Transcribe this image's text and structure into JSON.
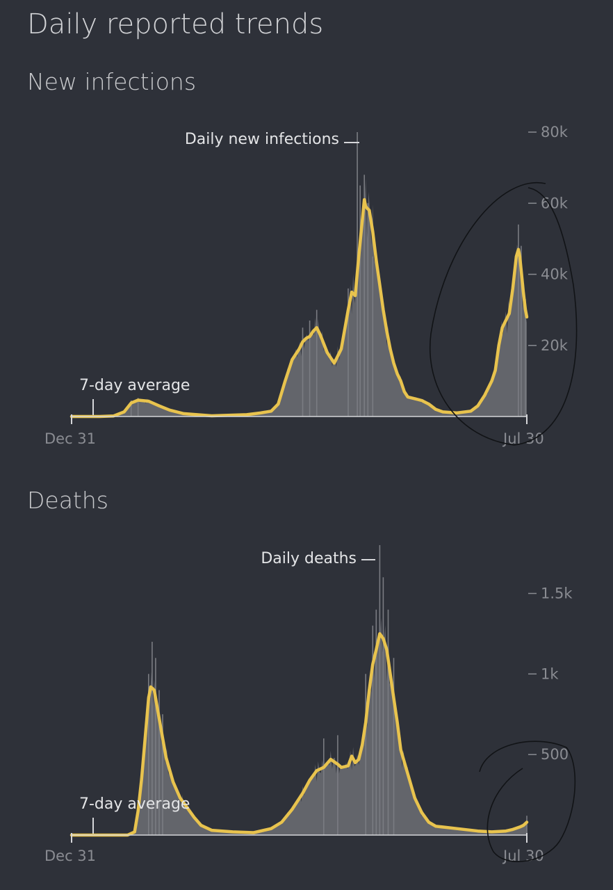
{
  "page_title": "Daily reported trends",
  "colors": {
    "background": "#2e3139",
    "bars": "#63656b",
    "average_line": "#e8c34e",
    "text": "#d6d7da",
    "muted_text": "#8a8c92"
  },
  "chart_data": [
    {
      "type": "bar",
      "title": "New infections",
      "bar_series_label": "Daily new infections",
      "line_series_label": "7-day average",
      "x_start_label": "Dec 31",
      "x_end_label": "Jul 30",
      "ylim": [
        0,
        80000
      ],
      "y_ticks": [
        20000,
        40000,
        60000,
        80000
      ],
      "y_tick_labels": [
        "20k",
        "40k",
        "60k",
        "80k"
      ],
      "grid": false,
      "average": [
        [
          0,
          0
        ],
        [
          40,
          0
        ],
        [
          60,
          150
        ],
        [
          75,
          1300
        ],
        [
          85,
          3800
        ],
        [
          95,
          4600
        ],
        [
          110,
          4300
        ],
        [
          125,
          3000
        ],
        [
          140,
          1800
        ],
        [
          160,
          800
        ],
        [
          200,
          200
        ],
        [
          250,
          500
        ],
        [
          270,
          1000
        ],
        [
          285,
          1500
        ],
        [
          295,
          3500
        ],
        [
          305,
          10000
        ],
        [
          315,
          16000
        ],
        [
          325,
          19000
        ],
        [
          330,
          21000
        ],
        [
          335,
          22000
        ],
        [
          340,
          22500
        ],
        [
          345,
          24000
        ],
        [
          350,
          25000
        ],
        [
          355,
          23000
        ],
        [
          365,
          18000
        ],
        [
          375,
          15000
        ],
        [
          385,
          19000
        ],
        [
          395,
          30000
        ],
        [
          400,
          35000
        ],
        [
          405,
          34000
        ],
        [
          410,
          45000
        ],
        [
          415,
          55000
        ],
        [
          418,
          61000
        ],
        [
          420,
          59000
        ],
        [
          425,
          58000
        ],
        [
          430,
          52000
        ],
        [
          435,
          44000
        ],
        [
          440,
          37000
        ],
        [
          445,
          30000
        ],
        [
          450,
          24000
        ],
        [
          455,
          19000
        ],
        [
          460,
          15000
        ],
        [
          465,
          12000
        ],
        [
          470,
          10000
        ],
        [
          475,
          7000
        ],
        [
          480,
          5500
        ],
        [
          490,
          5000
        ],
        [
          500,
          4500
        ],
        [
          510,
          3500
        ],
        [
          520,
          2000
        ],
        [
          530,
          1300
        ],
        [
          550,
          1000
        ],
        [
          570,
          1500
        ],
        [
          580,
          3000
        ],
        [
          590,
          6000
        ],
        [
          600,
          10000
        ],
        [
          605,
          13000
        ],
        [
          610,
          20000
        ],
        [
          615,
          25000
        ],
        [
          625,
          29000
        ],
        [
          630,
          36000
        ],
        [
          635,
          45000
        ],
        [
          638,
          47000
        ],
        [
          640,
          45000
        ],
        [
          645,
          35000
        ],
        [
          648,
          30000
        ],
        [
          650,
          28000
        ]
      ],
      "daily_peaks": [
        [
          85,
          4500
        ],
        [
          95,
          5200
        ],
        [
          330,
          25000
        ],
        [
          340,
          27000
        ],
        [
          350,
          30000
        ],
        [
          395,
          36000
        ],
        [
          408,
          80000
        ],
        [
          412,
          65000
        ],
        [
          418,
          68000
        ],
        [
          423,
          60000
        ],
        [
          430,
          45000
        ],
        [
          638,
          54000
        ],
        [
          642,
          48000
        ],
        [
          648,
          33000
        ]
      ]
    },
    {
      "type": "bar",
      "title": "Deaths",
      "bar_series_label": "Daily deaths",
      "line_series_label": "7-day average",
      "x_start_label": "Dec 31",
      "x_end_label": "Jul 30",
      "ylim": [
        0,
        1800
      ],
      "y_ticks": [
        500,
        1000,
        1500
      ],
      "y_tick_labels": [
        "500",
        "1k",
        "1.5k"
      ],
      "grid": false,
      "average": [
        [
          0,
          0
        ],
        [
          80,
          0
        ],
        [
          90,
          20
        ],
        [
          95,
          150
        ],
        [
          100,
          350
        ],
        [
          105,
          600
        ],
        [
          110,
          850
        ],
        [
          113,
          920
        ],
        [
          118,
          900
        ],
        [
          122,
          800
        ],
        [
          128,
          650
        ],
        [
          135,
          480
        ],
        [
          145,
          330
        ],
        [
          155,
          230
        ],
        [
          165,
          170
        ],
        [
          175,
          110
        ],
        [
          185,
          60
        ],
        [
          200,
          30
        ],
        [
          230,
          20
        ],
        [
          260,
          15
        ],
        [
          285,
          40
        ],
        [
          300,
          80
        ],
        [
          315,
          160
        ],
        [
          330,
          260
        ],
        [
          340,
          340
        ],
        [
          350,
          400
        ],
        [
          360,
          420
        ],
        [
          370,
          470
        ],
        [
          380,
          440
        ],
        [
          385,
          420
        ],
        [
          395,
          430
        ],
        [
          400,
          490
        ],
        [
          405,
          450
        ],
        [
          410,
          470
        ],
        [
          415,
          560
        ],
        [
          420,
          700
        ],
        [
          425,
          900
        ],
        [
          430,
          1060
        ],
        [
          435,
          1150
        ],
        [
          440,
          1250
        ],
        [
          445,
          1220
        ],
        [
          450,
          1150
        ],
        [
          455,
          1000
        ],
        [
          460,
          850
        ],
        [
          465,
          700
        ],
        [
          470,
          530
        ],
        [
          480,
          380
        ],
        [
          490,
          230
        ],
        [
          500,
          140
        ],
        [
          510,
          80
        ],
        [
          520,
          55
        ],
        [
          550,
          40
        ],
        [
          580,
          25
        ],
        [
          600,
          20
        ],
        [
          620,
          25
        ],
        [
          630,
          35
        ],
        [
          640,
          50
        ],
        [
          645,
          60
        ],
        [
          650,
          80
        ]
      ],
      "daily_peaks": [
        [
          110,
          1000
        ],
        [
          115,
          1200
        ],
        [
          120,
          1100
        ],
        [
          125,
          900
        ],
        [
          130,
          750
        ],
        [
          360,
          600
        ],
        [
          380,
          620
        ],
        [
          420,
          1000
        ],
        [
          430,
          1300
        ],
        [
          435,
          1400
        ],
        [
          440,
          1800
        ],
        [
          445,
          1600
        ],
        [
          452,
          1400
        ],
        [
          460,
          1100
        ],
        [
          650,
          120
        ]
      ]
    }
  ]
}
